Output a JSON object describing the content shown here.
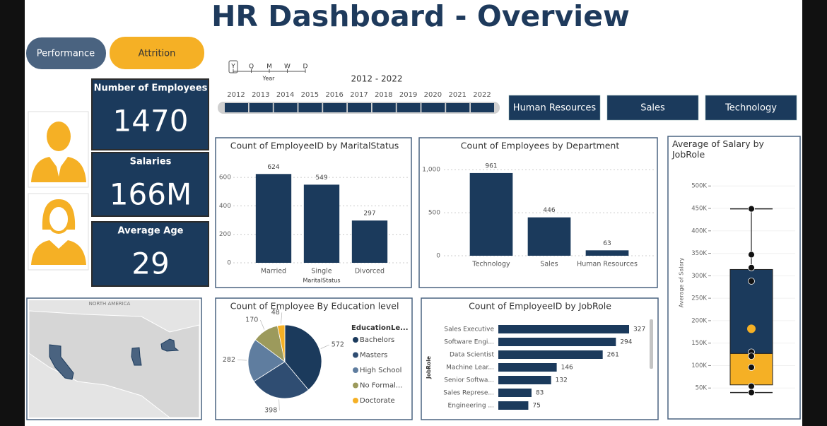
{
  "header": {
    "title": "HR Dashboard - Overview"
  },
  "nav_buttons": [
    "Performance",
    "Attrition"
  ],
  "timeline": {
    "granularity": [
      "Y",
      "Q",
      "M",
      "W",
      "D"
    ],
    "level": "Year",
    "range": "2012 - 2022",
    "years": [
      2012,
      2013,
      2014,
      2015,
      2016,
      2017,
      2018,
      2019,
      2020,
      2021,
      2022
    ]
  },
  "department_slicer": [
    "Human Resources",
    "Sales",
    "Technology"
  ],
  "kpis": [
    {
      "label": "Number of Employees",
      "value": "1470"
    },
    {
      "label": "Salaries",
      "value": "166M"
    },
    {
      "label": "Average Age",
      "value": "29"
    }
  ],
  "map": {
    "region_label": "NORTH AMERICA"
  },
  "chart_data": [
    {
      "type": "bar",
      "title": "Count of EmployeeID by MaritalStatus",
      "x_label": "MaritalStatus",
      "categories": [
        "Married",
        "Single",
        "Divorced"
      ],
      "values": [
        624,
        549,
        297
      ],
      "color": "#1b3a5c",
      "ylim": [
        0,
        680
      ],
      "yticks": [
        0,
        200,
        400,
        600
      ],
      "grid": true
    },
    {
      "type": "bar",
      "title": "Count of Employees by Department",
      "categories": [
        "Technology",
        "Sales",
        "Human Resources"
      ],
      "values": [
        961,
        446,
        63
      ],
      "color": "#1b3a5c",
      "ylim": [
        0,
        1100
      ],
      "yticks": [
        0,
        500,
        {
          "value": 1000,
          "label": "1,000"
        }
      ],
      "grid": true
    },
    {
      "type": "pie",
      "title": "Count of Employee By Education level",
      "legend_title": "EducationLe...",
      "categories": [
        "Bachelors",
        "Masters",
        "High School",
        "No Formal...",
        "Doctorate"
      ],
      "values": [
        572,
        398,
        282,
        170,
        48
      ],
      "colors": [
        "#1b3a5c",
        "#2f4d72",
        "#5f7d9f",
        "#9c9a5c",
        "#f5b025"
      ]
    },
    {
      "type": "hbar",
      "title": "Count of EmployeeID by JobRole",
      "y_label": "JobRole",
      "categories": [
        "Sales Executive",
        "Software Engi...",
        "Data Scientist",
        "Machine Lear...",
        "Senior Softwa...",
        "Sales Represe...",
        "Engineering ..."
      ],
      "values": [
        327,
        294,
        261,
        146,
        132,
        83,
        75
      ],
      "color": "#1b3a5c",
      "xlim": [
        0,
        380
      ]
    },
    {
      "type": "box",
      "title": "Average of Salary by JobRole",
      "y_label": "Average of Salary",
      "box": {
        "min": 40000,
        "q1": 57000,
        "median": 127000,
        "q3": 314000,
        "max": 449000,
        "mean": 182000
      },
      "points": [
        449000,
        347000,
        318000,
        288000,
        130000,
        121000,
        96000,
        54000,
        40000
      ],
      "box_colors": [
        "#f5b025",
        "#1b3a5c"
      ],
      "point_color": "#111111",
      "ylim": [
        0,
        535000
      ],
      "yticks": [
        {
          "value": 50000,
          "label": "50K"
        },
        {
          "value": 100000,
          "label": "100K"
        },
        {
          "value": 150000,
          "label": "150K"
        },
        {
          "value": 200000,
          "label": "200K"
        },
        {
          "value": 250000,
          "label": "250K"
        },
        {
          "value": 300000,
          "label": "300K"
        },
        {
          "value": 350000,
          "label": "350K"
        },
        {
          "value": 400000,
          "label": "400K"
        },
        {
          "value": 450000,
          "label": "450K"
        },
        {
          "value": 500000,
          "label": "500K"
        }
      ],
      "grid": true
    }
  ]
}
